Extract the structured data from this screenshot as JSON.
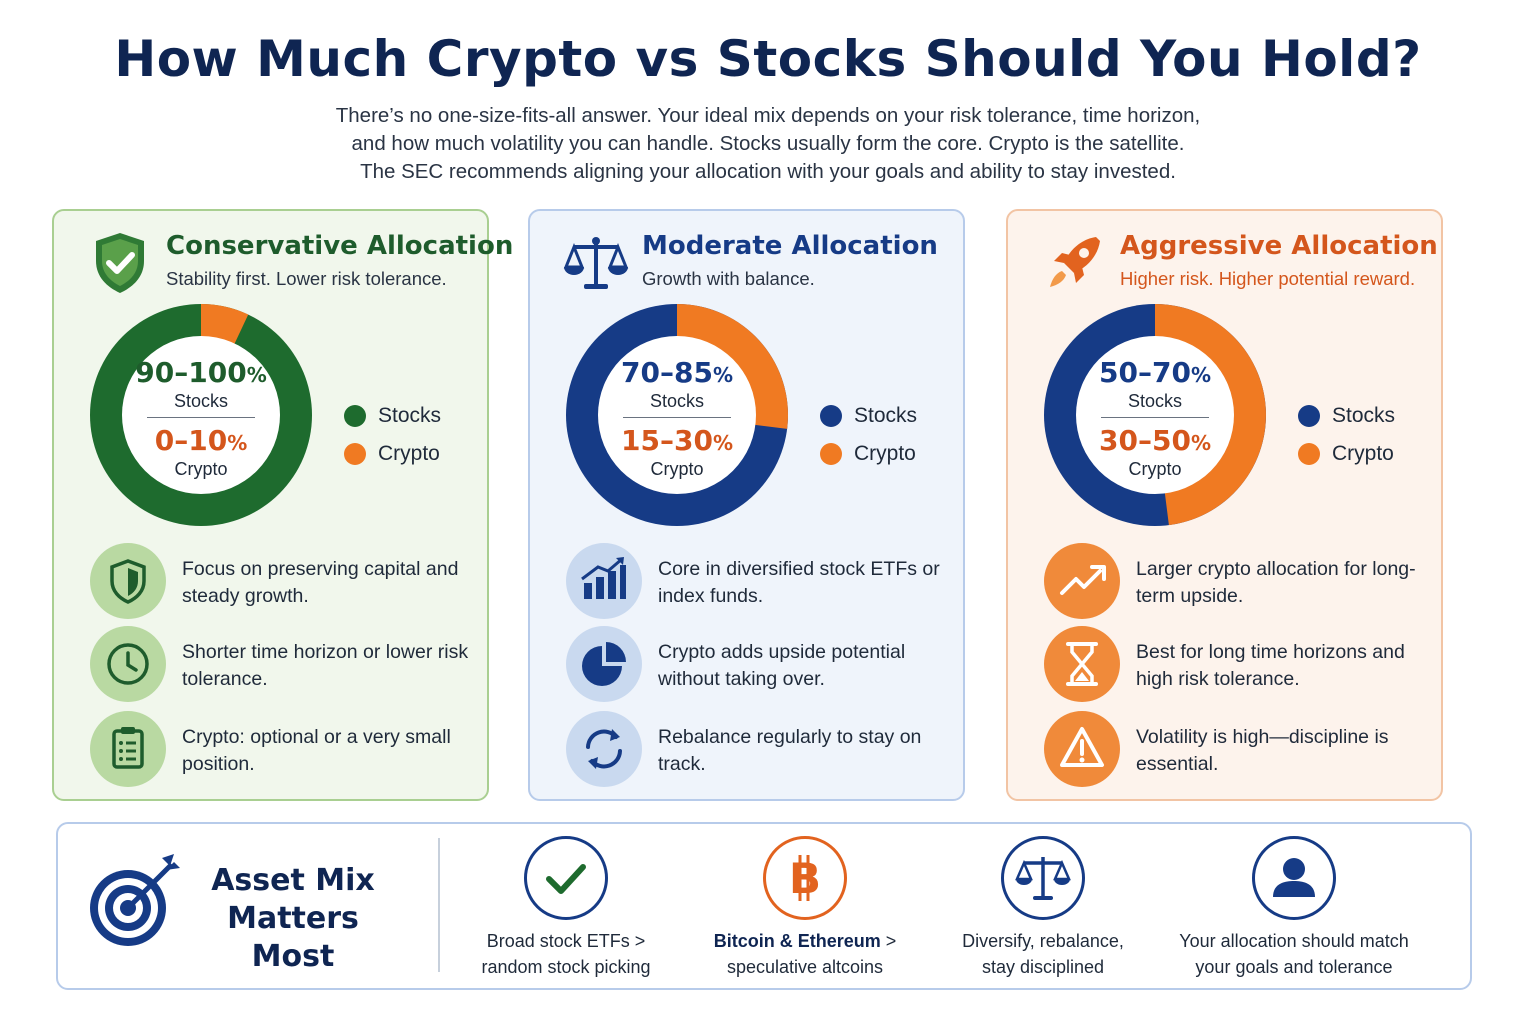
{
  "title": "How Much Crypto vs Stocks Should You Hold?",
  "intro": [
    "There’s no one-size-fits-all answer. Your ideal mix depends on your risk tolerance, time horizon,",
    "and how much volatility you can handle. Stocks usually form the core. Crypto is the satellite.",
    "The SEC recommends aligning your allocation with your goals and ability to stay invested."
  ],
  "colors": {
    "navy": "#163b86",
    "green": "#1e5c2c",
    "orange": "#f07a22"
  },
  "legend": {
    "stocks": "Stocks",
    "crypto": "Crypto"
  },
  "cards": [
    {
      "id": "conservative",
      "icon": "shield-check-icon",
      "title": "Conservative Allocation",
      "subtitle": "Stability first. Lower risk tolerance.",
      "stocks_range": "90–100",
      "crypto_range": "0–10",
      "pct_unit": "%",
      "stocks_label": "Stocks",
      "crypto_label": "Crypto",
      "crypto_share_shown": 0.07,
      "features": [
        {
          "icon": "shield-icon",
          "text": "Focus on preserving capital and steady growth."
        },
        {
          "icon": "clock-icon",
          "text": "Shorter time horizon or lower risk tolerance."
        },
        {
          "icon": "clipboard-icon",
          "text": "Crypto: optional or a very small position."
        }
      ]
    },
    {
      "id": "moderate",
      "icon": "scales-icon",
      "title": "Moderate Allocation",
      "subtitle": "Growth with balance.",
      "stocks_range": "70–85",
      "crypto_range": "15–30",
      "pct_unit": "%",
      "stocks_label": "Stocks",
      "crypto_label": "Crypto",
      "crypto_share_shown": 0.27,
      "features": [
        {
          "icon": "bar-chart-icon",
          "text": "Core in diversified stock ETFs or index funds."
        },
        {
          "icon": "pie-chart-icon",
          "text": "Crypto adds upside potential without taking over."
        },
        {
          "icon": "refresh-icon",
          "text": "Rebalance regularly to stay on track."
        }
      ]
    },
    {
      "id": "aggressive",
      "icon": "rocket-icon",
      "title": "Aggressive Allocation",
      "subtitle": "Higher risk. Higher potential reward.",
      "stocks_range": "50–70",
      "crypto_range": "30–50",
      "pct_unit": "%",
      "stocks_label": "Stocks",
      "crypto_label": "Crypto",
      "crypto_share_shown": 0.48,
      "features": [
        {
          "icon": "trend-up-icon",
          "text": "Larger crypto allocation for long-term upside."
        },
        {
          "icon": "hourglass-icon",
          "text": "Best for long time horizons and high risk tolerance."
        },
        {
          "icon": "warning-icon",
          "text": "Volatility is high—discipline is essential."
        }
      ]
    }
  ],
  "bottom": {
    "title_line1": "Asset Mix",
    "title_line2": "Matters Most",
    "icon": "target-arrow-icon",
    "items": [
      {
        "icon": "check-icon",
        "bold": "",
        "line1": "Broad stock ETFs >",
        "line2": "random stock picking"
      },
      {
        "icon": "bitcoin-icon",
        "bold": "Bitcoin & Ethereum",
        "line1": " >",
        "line2": "speculative altcoins"
      },
      {
        "icon": "scales-icon",
        "bold": "",
        "line1": "Diversify, rebalance,",
        "line2": "stay disciplined"
      },
      {
        "icon": "user-icon",
        "bold": "",
        "line1": "Your allocation should match",
        "line2": "your goals and tolerance"
      }
    ]
  }
}
